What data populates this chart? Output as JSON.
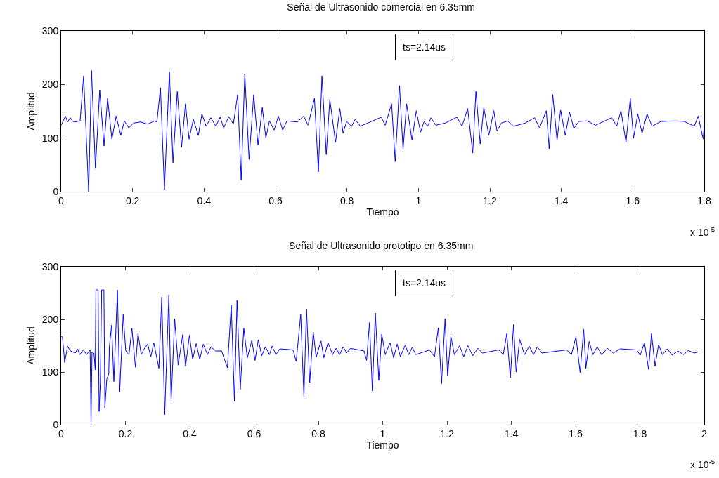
{
  "chart_data": [
    {
      "type": "line",
      "title": "Señal de Ultrasonido comercial en 6.35mm",
      "xlabel": "Tiempo",
      "ylabel": "Amplitud",
      "annotations": [
        "ts=2.14us",
        "x 10$^{-5}$"
      ],
      "xlim": [
        0,
        1.8
      ],
      "xticks": [
        0,
        0.2,
        0.4,
        0.6,
        0.8,
        1,
        1.2,
        1.4,
        1.6,
        1.8
      ],
      "ylim": [
        0,
        300
      ],
      "yticks": [
        0,
        100,
        200,
        300
      ],
      "grid": false,
      "legend": false,
      "marker": "none",
      "line_style": "solid",
      "series": [
        {
          "color": "#0000ff",
          "x": [
            0,
            0.012,
            0.018,
            0.026,
            0.031,
            0.037,
            0.053,
            0.063,
            0.077,
            0.085,
            0.096,
            0.108,
            0.12,
            0.13,
            0.142,
            0.154,
            0.167,
            0.177,
            0.189,
            0.203,
            0.222,
            0.242,
            0.262,
            0.268,
            0.278,
            0.289,
            0.303,
            0.313,
            0.325,
            0.337,
            0.348,
            0.358,
            0.37,
            0.384,
            0.394,
            0.406,
            0.419,
            0.433,
            0.445,
            0.455,
            0.469,
            0.482,
            0.494,
            0.504,
            0.514,
            0.526,
            0.539,
            0.551,
            0.563,
            0.573,
            0.583,
            0.596,
            0.608,
            0.62,
            0.632,
            0.661,
            0.679,
            0.691,
            0.709,
            0.72,
            0.73,
            0.742,
            0.752,
            0.768,
            0.78,
            0.789,
            0.799,
            0.813,
            0.823,
            0.837,
            0.858,
            0.896,
            0.907,
            0.925,
            0.935,
            0.947,
            0.957,
            0.967,
            0.982,
            0.994,
            1.006,
            1.016,
            1.026,
            1.035,
            1.049,
            1.075,
            1.108,
            1.122,
            1.138,
            1.152,
            1.161,
            1.173,
            1.183,
            1.197,
            1.211,
            1.22,
            1.232,
            1.25,
            1.266,
            1.299,
            1.325,
            1.339,
            1.358,
            1.366,
            1.376,
            1.388,
            1.398,
            1.411,
            1.423,
            1.435,
            1.449,
            1.472,
            1.496,
            1.541,
            1.555,
            1.567,
            1.581,
            1.593,
            1.602,
            1.614,
            1.626,
            1.64,
            1.654,
            1.679,
            1.719,
            1.744,
            1.772,
            1.783,
            1.797,
            1.8
          ],
          "values": [
            124,
            141,
            130,
            138,
            132,
            130,
            132,
            216,
            0,
            226,
            43,
            190,
            85,
            174,
            98,
            141,
            105,
            132,
            119,
            128,
            130,
            126,
            132,
            130,
            194,
            4,
            224,
            54,
            187,
            83,
            164,
            98,
            135,
            105,
            145,
            122,
            138,
            122,
            139,
            119,
            140,
            126,
            181,
            21,
            220,
            60,
            181,
            87,
            157,
            100,
            132,
            115,
            141,
            115,
            132,
            130,
            141,
            124,
            174,
            37,
            216,
            69,
            172,
            92,
            155,
            109,
            131,
            122,
            135,
            122,
            128,
            139,
            124,
            164,
            56,
            198,
            79,
            164,
            96,
            151,
            111,
            131,
            122,
            138,
            124,
            128,
            139,
            122,
            155,
            72,
            187,
            89,
            157,
            105,
            151,
            113,
            128,
            132,
            122,
            128,
            138,
            119,
            151,
            80,
            181,
            96,
            152,
            105,
            148,
            118,
            131,
            132,
            124,
            138,
            122,
            151,
            92,
            174,
            100,
            145,
            109,
            145,
            122,
            131,
            132,
            131,
            122,
            141,
            98,
            124
          ]
        }
      ]
    },
    {
      "type": "line",
      "title": "Señal de Ultrasonido prototipo en 6.35mm",
      "xlabel": "Tiempo",
      "ylabel": "Amplitud",
      "annotations": [
        "ts=2.14us",
        "x 10$^{-5}$"
      ],
      "xlim": [
        0,
        2
      ],
      "xticks": [
        0,
        0.2,
        0.4,
        0.6,
        0.8,
        1,
        1.2,
        1.4,
        1.6,
        1.8,
        2
      ],
      "ylim": [
        0,
        300
      ],
      "yticks": [
        0,
        100,
        200,
        300
      ],
      "grid": false,
      "legend": false,
      "marker": "none",
      "line_style": "solid",
      "series": [
        {
          "color": "#0000ff",
          "x": [
            0,
            0.004,
            0.011,
            0.02,
            0.029,
            0.044,
            0.051,
            0.058,
            0.069,
            0.079,
            0.09,
            0.093,
            0.096,
            0.102,
            0.106,
            0.108,
            0.115,
            0.118,
            0.122,
            0.126,
            0.133,
            0.136,
            0.142,
            0.148,
            0.15,
            0.157,
            0.164,
            0.175,
            0.182,
            0.193,
            0.201,
            0.211,
            0.22,
            0.231,
            0.239,
            0.249,
            0.258,
            0.269,
            0.279,
            0.288,
            0.304,
            0.313,
            0.322,
            0.335,
            0.342,
            0.353,
            0.364,
            0.378,
            0.387,
            0.399,
            0.409,
            0.42,
            0.431,
            0.442,
            0.455,
            0.466,
            0.48,
            0.499,
            0.517,
            0.529,
            0.539,
            0.547,
            0.557,
            0.568,
            0.579,
            0.593,
            0.603,
            0.613,
            0.624,
            0.635,
            0.648,
            0.656,
            0.668,
            0.68,
            0.721,
            0.731,
            0.745,
            0.755,
            0.763,
            0.773,
            0.784,
            0.793,
            0.808,
            0.817,
            0.83,
            0.844,
            0.855,
            0.866,
            0.877,
            0.888,
            0.899,
            0.942,
            0.95,
            0.959,
            0.968,
            0.977,
            0.988,
            0.997,
            1.008,
            1.023,
            1.034,
            1.045,
            1.055,
            1.07,
            1.081,
            1.092,
            1.103,
            1.146,
            1.161,
            1.173,
            1.183,
            1.194,
            1.202,
            1.212,
            1.223,
            1.239,
            1.252,
            1.265,
            1.28,
            1.296,
            1.31,
            1.361,
            1.375,
            1.386,
            1.397,
            1.407,
            1.415,
            1.426,
            1.441,
            1.456,
            1.469,
            1.481,
            1.495,
            1.572,
            1.587,
            1.601,
            1.614,
            1.625,
            1.632,
            1.642,
            1.654,
            1.667,
            1.681,
            1.699,
            1.717,
            1.739,
            1.79,
            1.801,
            1.814,
            1.827,
            1.836,
            1.847,
            1.858,
            1.87,
            1.885,
            1.9,
            1.918,
            1.936,
            1.95,
            1.969,
            1.98
          ],
          "values": [
            167,
            167,
            118,
            149,
            140,
            136,
            144,
            133,
            142,
            133,
            142,
            0,
            138,
            136,
            104,
            256,
            256,
            25,
            82,
            256,
            256,
            32,
            87,
            96,
            149,
            189,
            82,
            256,
            62,
            209,
            140,
            133,
            183,
            109,
            173,
            133,
            144,
            153,
            129,
            156,
            107,
            242,
            19,
            247,
            44,
            201,
            113,
            171,
            111,
            170,
            124,
            154,
            124,
            153,
            133,
            148,
            140,
            140,
            108,
            227,
            44,
            236,
            67,
            183,
            127,
            160,
            122,
            161,
            131,
            148,
            133,
            149,
            133,
            144,
            142,
            120,
            209,
            53,
            220,
            80,
            176,
            128,
            159,
            127,
            156,
            133,
            145,
            133,
            148,
            136,
            145,
            140,
            122,
            194,
            64,
            212,
            84,
            172,
            133,
            156,
            127,
            153,
            129,
            151,
            133,
            147,
            133,
            142,
            129,
            184,
            78,
            201,
            92,
            168,
            133,
            150,
            129,
            150,
            131,
            145,
            136,
            142,
            133,
            173,
            89,
            190,
            100,
            162,
            133,
            149,
            133,
            148,
            136,
            142,
            133,
            167,
            99,
            181,
            107,
            158,
            133,
            148,
            133,
            145,
            136,
            144,
            142,
            132,
            156,
            105,
            173,
            111,
            152,
            133,
            144,
            132,
            140,
            133,
            141,
            136,
            138
          ]
        }
      ]
    }
  ]
}
